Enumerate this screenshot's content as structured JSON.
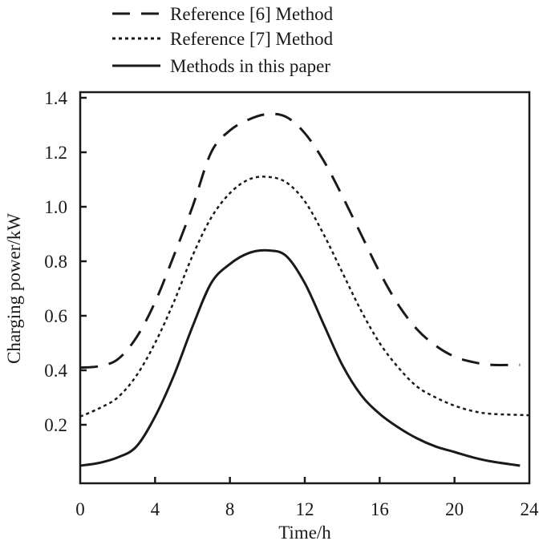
{
  "chart_data": {
    "type": "line",
    "xlabel": "Time/h",
    "ylabel": "Charging power/kW",
    "xlim": [
      0,
      24
    ],
    "ylim": [
      0,
      1.42
    ],
    "xticks": [
      "0",
      "4",
      "8",
      "12",
      "16",
      "20",
      "24"
    ],
    "yticks": [
      "0.2",
      "0.4",
      "0.6",
      "0.8",
      "1.0",
      "1.2",
      "1.4"
    ],
    "grid": false,
    "legend_placement": "top, above plot",
    "series": [
      {
        "name": "Reference [6] Method",
        "style": "dashed",
        "color": "#1a1a1a",
        "x": [
          0,
          1,
          2,
          3,
          4,
          5,
          6,
          7,
          8,
          9,
          10,
          11,
          12,
          13,
          14,
          15,
          16,
          17,
          18,
          19,
          20,
          21,
          22,
          23.5
        ],
        "y": [
          0.41,
          0.415,
          0.44,
          0.52,
          0.65,
          0.82,
          1.0,
          1.2,
          1.28,
          1.32,
          1.34,
          1.33,
          1.27,
          1.17,
          1.04,
          0.9,
          0.76,
          0.64,
          0.55,
          0.49,
          0.45,
          0.43,
          0.42,
          0.42
        ]
      },
      {
        "name": "Reference [7] Method",
        "style": "dotted",
        "color": "#1a1a1a",
        "x": [
          0,
          1,
          2,
          3,
          4,
          5,
          6,
          7,
          8,
          9,
          10,
          11,
          12,
          13,
          14,
          15,
          16,
          17,
          18,
          19,
          20,
          21,
          22,
          24
        ],
        "y": [
          0.23,
          0.26,
          0.3,
          0.38,
          0.5,
          0.65,
          0.82,
          0.96,
          1.05,
          1.1,
          1.11,
          1.09,
          1.02,
          0.9,
          0.76,
          0.62,
          0.5,
          0.41,
          0.34,
          0.3,
          0.27,
          0.25,
          0.24,
          0.235
        ]
      },
      {
        "name": "Methods in this paper",
        "style": "solid",
        "color": "#1a1a1a",
        "x": [
          0,
          1,
          2,
          3,
          4,
          5,
          6,
          7,
          8,
          9,
          10,
          11,
          12,
          13,
          14,
          15,
          16,
          17,
          18,
          19,
          20,
          21,
          22,
          23.5
        ],
        "y": [
          0.05,
          0.06,
          0.08,
          0.12,
          0.23,
          0.38,
          0.56,
          0.72,
          0.79,
          0.83,
          0.84,
          0.82,
          0.72,
          0.57,
          0.42,
          0.31,
          0.24,
          0.19,
          0.15,
          0.12,
          0.1,
          0.08,
          0.065,
          0.05
        ]
      }
    ]
  }
}
